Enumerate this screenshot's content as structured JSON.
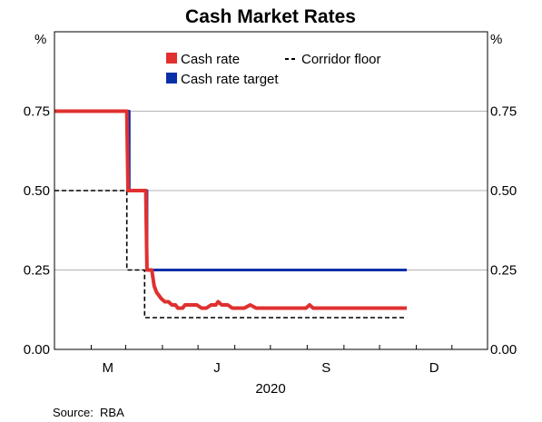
{
  "chart_data": {
    "type": "line",
    "title": "Cash Market Rates",
    "y_unit_left": "%",
    "y_unit_right": "%",
    "ylim": [
      0,
      1.0
    ],
    "y_ticks": [
      "0.00",
      "0.25",
      "0.50",
      "0.75"
    ],
    "y_tick_values": [
      0,
      0.25,
      0.5,
      0.75
    ],
    "grid": true,
    "x_range_days": [
      0,
      365
    ],
    "x_ticks": [
      {
        "label": "M",
        "day": 45
      },
      {
        "label": "J",
        "day": 137
      },
      {
        "label": "S",
        "day": 229
      },
      {
        "label": "D",
        "day": 320
      }
    ],
    "x_year_label": "2020",
    "legend": {
      "placement": "top-center",
      "entries": [
        {
          "name": "Cash rate",
          "color": "#e03030",
          "style": "solid"
        },
        {
          "name": "Corridor floor",
          "color": "#000000",
          "style": "dashed"
        },
        {
          "name": "Cash rate target",
          "color": "#0a2fa8",
          "style": "solid"
        }
      ]
    },
    "series": [
      {
        "name": "Cash rate target",
        "color": "#0a2fa8",
        "step": true,
        "points": [
          [
            0,
            0.75
          ],
          [
            63,
            0.75
          ],
          [
            63,
            0.5
          ],
          [
            78,
            0.5
          ],
          [
            78,
            0.25
          ],
          [
            297,
            0.25
          ]
        ]
      },
      {
        "name": "Corridor floor",
        "color": "#000000",
        "dashed": true,
        "step": true,
        "points": [
          [
            0,
            0.5
          ],
          [
            61,
            0.5
          ],
          [
            61,
            0.25
          ],
          [
            76,
            0.25
          ],
          [
            76,
            0.1
          ],
          [
            297,
            0.1
          ]
        ]
      },
      {
        "name": "Cash rate",
        "color": "#e03030",
        "points": [
          [
            0,
            0.75
          ],
          [
            61,
            0.75
          ],
          [
            62,
            0.5
          ],
          [
            77,
            0.5
          ],
          [
            78,
            0.25
          ],
          [
            82,
            0.25
          ],
          [
            84,
            0.2
          ],
          [
            86,
            0.18
          ],
          [
            88,
            0.17
          ],
          [
            90,
            0.16
          ],
          [
            93,
            0.15
          ],
          [
            96,
            0.15
          ],
          [
            99,
            0.14
          ],
          [
            102,
            0.14
          ],
          [
            104,
            0.13
          ],
          [
            108,
            0.13
          ],
          [
            110,
            0.14
          ],
          [
            115,
            0.14
          ],
          [
            120,
            0.14
          ],
          [
            124,
            0.13
          ],
          [
            128,
            0.13
          ],
          [
            132,
            0.14
          ],
          [
            136,
            0.14
          ],
          [
            138,
            0.15
          ],
          [
            141,
            0.14
          ],
          [
            146,
            0.14
          ],
          [
            150,
            0.13
          ],
          [
            160,
            0.13
          ],
          [
            165,
            0.14
          ],
          [
            170,
            0.13
          ],
          [
            185,
            0.13
          ],
          [
            190,
            0.13
          ],
          [
            200,
            0.13
          ],
          [
            212,
            0.13
          ],
          [
            215,
            0.14
          ],
          [
            218,
            0.13
          ],
          [
            240,
            0.13
          ],
          [
            270,
            0.13
          ],
          [
            297,
            0.13
          ]
        ]
      }
    ],
    "source": "Source:  RBA"
  }
}
